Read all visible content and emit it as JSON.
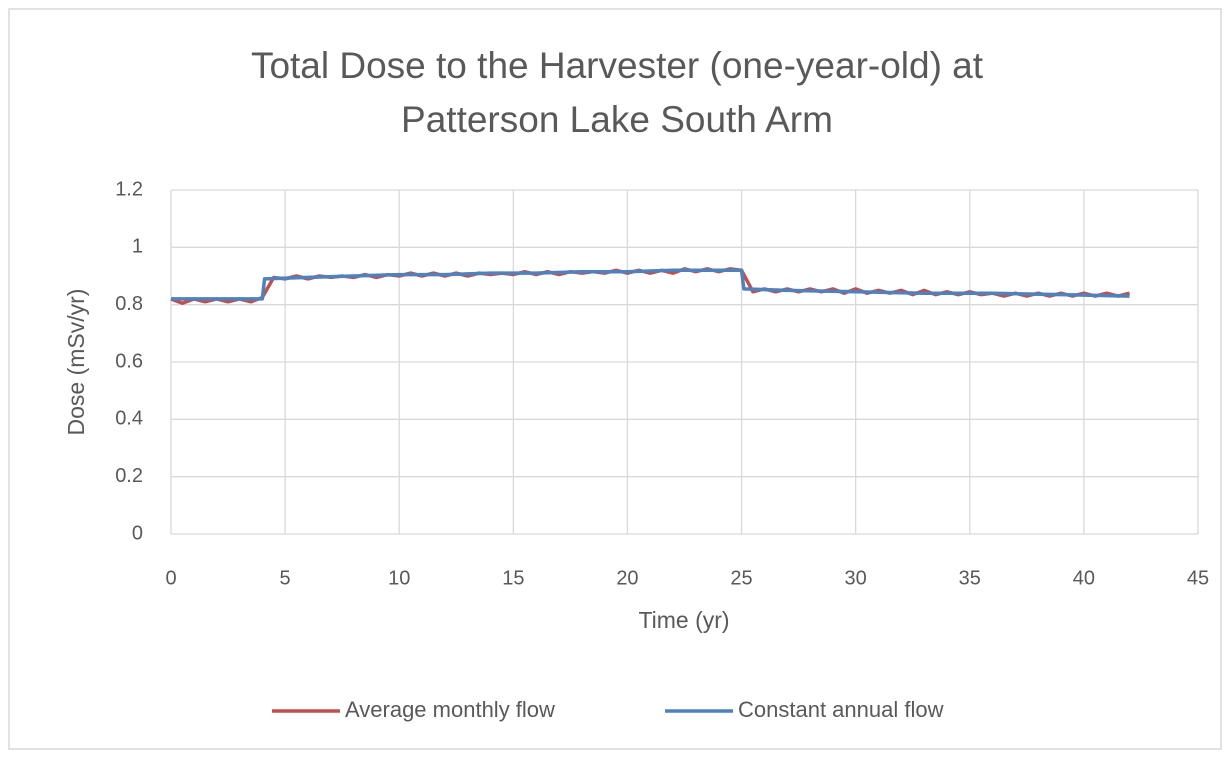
{
  "chart_data": {
    "type": "line",
    "title": [
      "Total Dose to the Harvester (one-year-old) at",
      "Patterson Lake South Arm"
    ],
    "x_label": "Time (yr)",
    "y_label": "Dose (mSv/yr)",
    "xlim": [
      0,
      45
    ],
    "xticks": [
      0,
      5,
      10,
      15,
      20,
      25,
      30,
      35,
      40,
      45
    ],
    "ylim": [
      0,
      1.2
    ],
    "yticks": [
      0,
      0.2,
      0.4,
      0.6,
      0.8,
      1,
      1.2
    ],
    "grid": true,
    "legend": "bottom",
    "series": [
      {
        "name": "Average monthly flow",
        "color": "#c0504d",
        "x": [
          0,
          0.5,
          1,
          1.5,
          2,
          2.5,
          3,
          3.5,
          4,
          4.5,
          5,
          5.5,
          6,
          6.5,
          7,
          7.5,
          8,
          8.5,
          9,
          9.5,
          10,
          10.5,
          11,
          11.5,
          12,
          12.5,
          13,
          13.5,
          14,
          14.5,
          15,
          15.5,
          16,
          16.5,
          17,
          17.5,
          18,
          18.5,
          19,
          19.5,
          20,
          20.5,
          21,
          21.5,
          22,
          22.5,
          23,
          23.5,
          24,
          24.5,
          25,
          25.5,
          26,
          26.5,
          27,
          27.5,
          28,
          28.5,
          29,
          29.5,
          30,
          30.5,
          31,
          31.5,
          32,
          32.5,
          33,
          33.5,
          34,
          34.5,
          35,
          35.5,
          36,
          36.5,
          37,
          37.5,
          38,
          38.5,
          39,
          39.5,
          40,
          40.5,
          41,
          41.5,
          42
        ],
        "values": [
          0.82,
          0.805,
          0.82,
          0.81,
          0.82,
          0.81,
          0.82,
          0.81,
          0.825,
          0.895,
          0.89,
          0.9,
          0.89,
          0.9,
          0.895,
          0.9,
          0.895,
          0.905,
          0.895,
          0.905,
          0.9,
          0.91,
          0.9,
          0.91,
          0.9,
          0.91,
          0.9,
          0.91,
          0.905,
          0.91,
          0.905,
          0.915,
          0.905,
          0.915,
          0.905,
          0.915,
          0.91,
          0.915,
          0.91,
          0.92,
          0.91,
          0.92,
          0.91,
          0.92,
          0.91,
          0.925,
          0.915,
          0.925,
          0.915,
          0.925,
          0.92,
          0.845,
          0.855,
          0.845,
          0.855,
          0.845,
          0.855,
          0.845,
          0.855,
          0.84,
          0.855,
          0.84,
          0.85,
          0.84,
          0.85,
          0.835,
          0.85,
          0.835,
          0.845,
          0.835,
          0.845,
          0.835,
          0.84,
          0.83,
          0.84,
          0.83,
          0.84,
          0.83,
          0.84,
          0.83,
          0.84,
          0.83,
          0.84,
          0.83,
          0.84
        ]
      },
      {
        "name": "Constant annual flow",
        "color": "#4f81bd",
        "x": [
          0,
          1,
          2,
          3,
          4,
          4.1,
          6,
          8,
          10,
          12,
          14,
          16,
          18,
          20,
          22,
          24,
          25,
          25.1,
          27,
          30,
          33,
          36,
          39,
          42
        ],
        "values": [
          0.82,
          0.82,
          0.82,
          0.82,
          0.82,
          0.89,
          0.895,
          0.9,
          0.905,
          0.905,
          0.91,
          0.91,
          0.915,
          0.915,
          0.92,
          0.92,
          0.92,
          0.855,
          0.85,
          0.845,
          0.84,
          0.84,
          0.835,
          0.83
        ]
      }
    ]
  }
}
